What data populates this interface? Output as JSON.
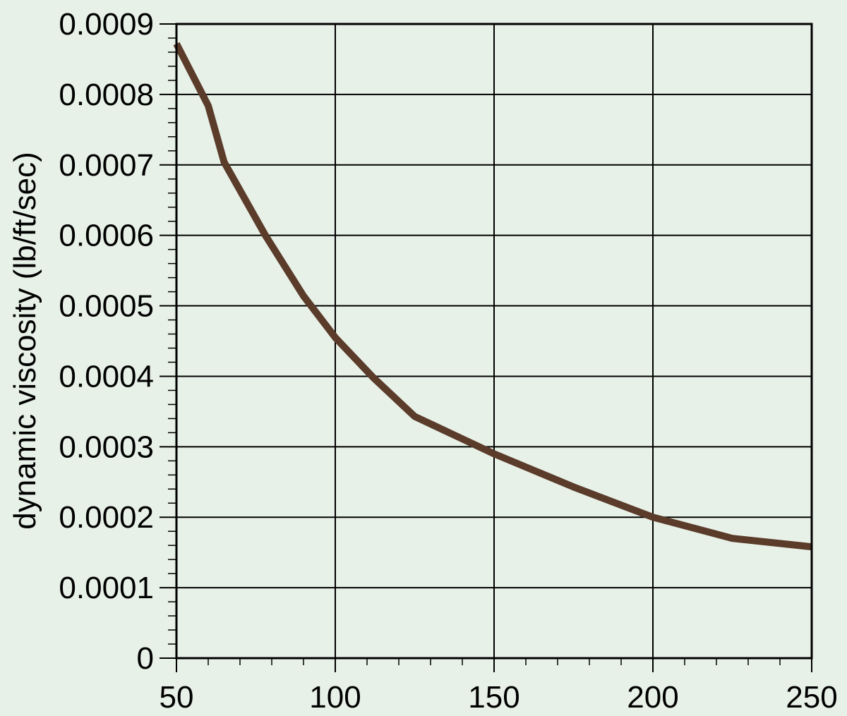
{
  "chart_data": {
    "type": "line",
    "y_label": "dynamic viscosity (lb/ft/sec)",
    "x": [
      50,
      60,
      65,
      78,
      90,
      100,
      112,
      125,
      150,
      175,
      200,
      225,
      250
    ],
    "series": [
      {
        "color": "#5b3b2a",
        "values": [
          0.000872,
          0.000784,
          0.000704,
          0.0006,
          0.000514,
          0.000455,
          0.000398,
          0.000343,
          0.00029,
          0.000243,
          0.0002,
          0.00017,
          0.000158
        ]
      }
    ],
    "xlim": [
      50,
      250
    ],
    "xticks": [
      50,
      100,
      150,
      200,
      250
    ],
    "ylim": [
      0,
      0.0009
    ],
    "yticks": [
      0,
      0.0001,
      0.0002,
      0.0003,
      0.0004,
      0.0005,
      0.0006,
      0.0007,
      0.0008,
      0.0009
    ],
    "grid": true
  }
}
